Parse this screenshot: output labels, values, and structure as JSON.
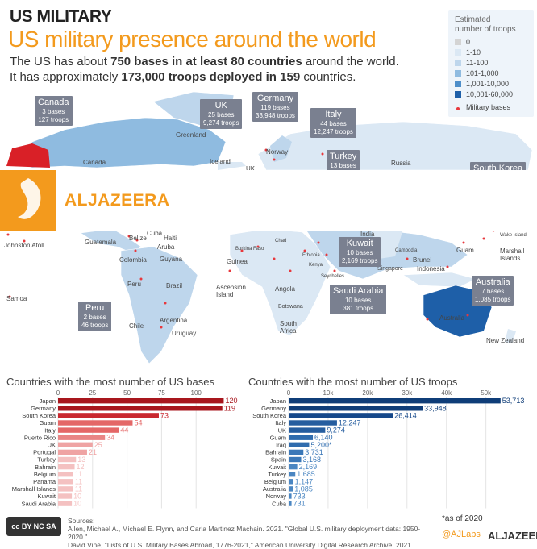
{
  "header": {
    "kicker": "US MILITARY",
    "title": "US military presence around the world",
    "sub1_pre": "The US has about ",
    "sub1_bold": "750 bases in at least 80 countries",
    "sub1_post": " around the world.",
    "sub2_pre": "It has approximately ",
    "sub2_bold": "173,000 troops deployed in 159",
    "sub2_post": " countries."
  },
  "legend": {
    "title_line1": "Estimated",
    "title_line2": "number of troops",
    "items": [
      {
        "label": "0",
        "color": "#d4d4d4"
      },
      {
        "label": "1-10",
        "color": "#dbe8f4"
      },
      {
        "label": "11-100",
        "color": "#bed6ec"
      },
      {
        "label": "101-1,000",
        "color": "#8fbbe0"
      },
      {
        "label": "1,001-10,000",
        "color": "#4d8ec9"
      },
      {
        "label": "10,001-60,000",
        "color": "#1e5fa8"
      }
    ],
    "bases_label": "Military bases",
    "bases_color": "#e8383d"
  },
  "brand": {
    "name": "ALJAZEERA"
  },
  "callouts": [
    {
      "name": "Canada",
      "l1": "3 bases",
      "l2": "127 troops"
    },
    {
      "name": "UK",
      "l1": "25 bases",
      "l2": "9,274 troops"
    },
    {
      "name": "Germany",
      "l1": "119 bases",
      "l2": "33,948 troops"
    },
    {
      "name": "Italy",
      "l1": "44 bases",
      "l2": "12,247 troops"
    },
    {
      "name": "Turkey",
      "l1": "13 bases",
      "l2": ""
    },
    {
      "name": "South Korea",
      "l1": "",
      "l2": ""
    },
    {
      "name": "Kuwait",
      "l1": "10 bases",
      "l2": "2,169 troops"
    },
    {
      "name": "Saudi Arabia",
      "l1": "10 bases",
      "l2": "381 troops"
    },
    {
      "name": "Australia",
      "l1": "7 bases",
      "l2": "1,085 troops"
    },
    {
      "name": "Peru",
      "l1": "2 bases",
      "l2": "46 troops"
    }
  ],
  "map_labels": [
    "Canada",
    "Greenland",
    "Iceland",
    "UK",
    "Norway",
    "Russia",
    "Johnston Atoll",
    "Guatemala",
    "Belize",
    "Cuba",
    "Haiti",
    "Aruba",
    "Colombia",
    "Guyana",
    "Peru",
    "Brazil",
    "Chile",
    "Argentina",
    "Uruguay",
    "Samoa",
    "Ascension Island",
    "Burkina Faso",
    "Chad",
    "Guinea",
    "Ethiopia",
    "Angola",
    "Botswana",
    "South Africa",
    "India",
    "Singapore",
    "Cambodia",
    "Brunei",
    "Indonesia",
    "Guam",
    "Wake Island",
    "Marshall Islands",
    "Australia",
    "New Zealand",
    "Seychelles",
    "Kenya"
  ],
  "chart_data": [
    {
      "type": "bar",
      "title": "Countries with the most number of US bases",
      "categories": [
        "Japan",
        "Germany",
        "South Korea",
        "Guam",
        "Italy",
        "Puerto Rico",
        "UK",
        "Portugal",
        "Turkey",
        "Bahrain",
        "Belgium",
        "Panama",
        "Marshall Islands",
        "Kuwait",
        "Saudi Arabia"
      ],
      "values": [
        120,
        119,
        73,
        54,
        44,
        34,
        25,
        21,
        13,
        12,
        11,
        11,
        11,
        10,
        10
      ],
      "ticks": [
        0,
        25,
        50,
        75,
        100
      ],
      "xlim": [
        0,
        125
      ],
      "colors": [
        "#a8161d",
        "#a8161d",
        "#c9282f",
        "#e46767",
        "#e46767",
        "#e98585",
        "#efa3a3",
        "#efa3a3",
        "#f4c1c1",
        "#f4c1c1",
        "#f4c1c1",
        "#f4c1c1",
        "#f4c1c1",
        "#f4c1c1",
        "#f4c1c1"
      ]
    },
    {
      "type": "bar",
      "title": "Countries with the most number of US troops",
      "categories": [
        "Japan",
        "Germany",
        "South Korea",
        "Italy",
        "UK",
        "Guam",
        "Iraq",
        "Bahrain",
        "Spain",
        "Kuwait",
        "Turkey",
        "Belgium",
        "Australia",
        "Norway",
        "Cuba"
      ],
      "values": [
        53713,
        33948,
        26414,
        12247,
        9274,
        6140,
        5200,
        3731,
        3168,
        2169,
        1685,
        1147,
        1085,
        733,
        731
      ],
      "value_labels": [
        "53,713",
        "33,948",
        "26,414",
        "12,247",
        "9,274",
        "6,140",
        "5,200*",
        "3,731",
        "3,168",
        "2,169",
        "1,685",
        "1,147",
        "1,085",
        "733",
        "731"
      ],
      "ticks": [
        0,
        10000,
        20000,
        30000,
        40000,
        50000
      ],
      "tick_labels": [
        "0",
        "10k",
        "20k",
        "30k",
        "40k",
        "50k"
      ],
      "xlim": [
        0,
        56000
      ],
      "colors": [
        "#0f3d78",
        "#0f3d78",
        "#16488a",
        "#255d9f",
        "#255d9f",
        "#2f6cae",
        "#2f6cae",
        "#3b78b8",
        "#3b78b8",
        "#4a86c2",
        "#4a86c2",
        "#4a86c2",
        "#4a86c2",
        "#4a86c2",
        "#4a86c2"
      ]
    }
  ],
  "footer": {
    "cc": "cc BY NC SA",
    "src_title": "Sources:",
    "src1": "Allen, Michael A., Michael E. Flynn, and Carla Martinez Machain. 2021. \"Global U.S. military deployment data: 1950-2020.\"",
    "src2": "David Vine, \"Lists of U.S. Military Bases Abroad, 1776-2021,\" American University Digital Research Archive, 2021",
    "asof": "*as of 2020",
    "labs": "@AJLabs",
    "brand": "ALJAZEERA"
  }
}
